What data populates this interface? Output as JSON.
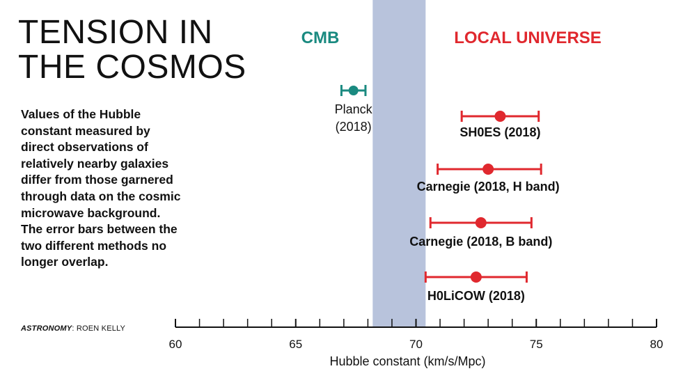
{
  "title_lines": [
    "TENSION IN",
    "THE COSMOS"
  ],
  "description": "Values of the Hubble constant measured by direct observations of relatively nearby galaxies differ from those garnered through data on the cosmic microwave background. The error bars between the two different methods no longer overlap.",
  "credit": {
    "publication": "ASTRONOMY",
    "author": ": ROEN KELLY"
  },
  "colors": {
    "cmb": "#1a8a80",
    "local": "#e0282e",
    "band": "#b8c3dc",
    "axis": "#111111"
  },
  "chart_data": {
    "type": "scatter",
    "xlabel": "Hubble constant (km/s/Mpc)",
    "xlim": [
      60,
      80
    ],
    "major_ticks": [
      60,
      65,
      70,
      75,
      80
    ],
    "minor_step": 1,
    "shaded_band": [
      68.2,
      70.4
    ],
    "groups": [
      {
        "name": "CMB",
        "color": "#1a8a80"
      },
      {
        "name": "LOCAL UNIVERSE",
        "color": "#e0282e"
      }
    ],
    "points": [
      {
        "label_lines": [
          "Planck",
          "(2018)"
        ],
        "value": 67.4,
        "low": 66.9,
        "high": 67.9,
        "group": "CMB"
      },
      {
        "label_lines": [
          "SH0ES (2018)"
        ],
        "value": 73.5,
        "low": 71.9,
        "high": 75.1,
        "group": "LOCAL UNIVERSE"
      },
      {
        "label_lines": [
          "Carnegie (2018, H band)"
        ],
        "value": 73.0,
        "low": 70.9,
        "high": 75.2,
        "group": "LOCAL UNIVERSE"
      },
      {
        "label_lines": [
          "Carnegie (2018, B band)"
        ],
        "value": 72.7,
        "low": 70.6,
        "high": 74.8,
        "group": "LOCAL UNIVERSE"
      },
      {
        "label_lines": [
          "H0LiCOW (2018)"
        ],
        "value": 72.5,
        "low": 70.4,
        "high": 74.6,
        "group": "LOCAL UNIVERSE"
      }
    ]
  }
}
